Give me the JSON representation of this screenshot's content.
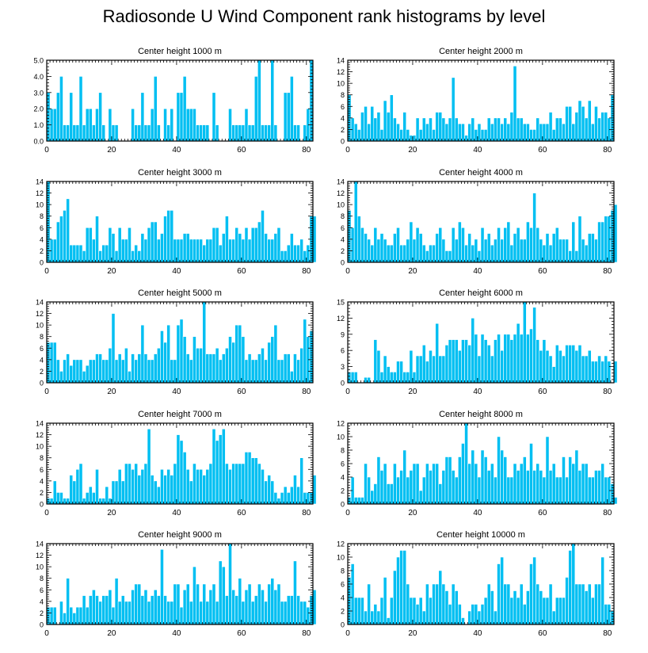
{
  "title": "Radiosonde U Wind Component rank histograms by level",
  "colors": {
    "bar_fill": "#00bff2",
    "bar_edge": "#ffffff",
    "frame": "#000000"
  },
  "chart_data": [
    {
      "type": "bar",
      "title": "Center height 1000 m",
      "xlim": [
        0,
        82
      ],
      "ylim": [
        0,
        5
      ],
      "yticks": [
        0,
        1,
        2,
        3,
        4,
        5
      ],
      "ytick_labels": [
        "0.0",
        "1.0",
        "2.0",
        "3.0",
        "4.0",
        "5.0"
      ],
      "xticks": [
        0,
        20,
        40,
        60,
        80
      ],
      "values": [
        3,
        2,
        2,
        3,
        4,
        1,
        1,
        3,
        1,
        1,
        4,
        1,
        2,
        2,
        1,
        2,
        3,
        1,
        0,
        2,
        1,
        1,
        0,
        0,
        0,
        0,
        2,
        1,
        1,
        3,
        1,
        1,
        2,
        4,
        1,
        0,
        2,
        1,
        2,
        0,
        3,
        3,
        4,
        2,
        2,
        2,
        1,
        1,
        1,
        1,
        0,
        3,
        1,
        0,
        0,
        0,
        2,
        1,
        1,
        1,
        1,
        2,
        1,
        1,
        4,
        5,
        1,
        1,
        1,
        5,
        1,
        0,
        0,
        3,
        3,
        4,
        1,
        1,
        0,
        1,
        2,
        5
      ]
    },
    {
      "type": "bar",
      "title": "Center height 2000 m",
      "xlim": [
        0,
        82
      ],
      "ylim": [
        0,
        14
      ],
      "yticks": [
        0,
        2,
        4,
        6,
        8,
        10,
        12,
        14
      ],
      "ytick_labels": [
        "0",
        "2",
        "4",
        "6",
        "8",
        "10",
        "12",
        "14"
      ],
      "xticks": [
        0,
        20,
        40,
        60,
        80
      ],
      "values": [
        8,
        4,
        3,
        2,
        5,
        6,
        3,
        6,
        4,
        5,
        2,
        7,
        5,
        8,
        4,
        3,
        2,
        5,
        2,
        1,
        1,
        4,
        2,
        4,
        3,
        4,
        2,
        5,
        5,
        4,
        3,
        4,
        11,
        4,
        3,
        3,
        1,
        3,
        4,
        2,
        3,
        2,
        2,
        4,
        3,
        4,
        4,
        3,
        4,
        3,
        5,
        13,
        4,
        4,
        3,
        3,
        2,
        2,
        4,
        3,
        3,
        3,
        5,
        2,
        4,
        4,
        3,
        6,
        6,
        3,
        5,
        7,
        6,
        4,
        7,
        3,
        6,
        4,
        5,
        5,
        4,
        8
      ]
    },
    {
      "type": "bar",
      "title": "Center height 3000 m",
      "xlim": [
        0,
        82
      ],
      "ylim": [
        0,
        14
      ],
      "yticks": [
        0,
        2,
        4,
        6,
        8,
        10,
        12,
        14
      ],
      "ytick_labels": [
        "0",
        "2",
        "4",
        "6",
        "8",
        "10",
        "12",
        "14"
      ],
      "xticks": [
        0,
        20,
        40,
        60,
        80
      ],
      "values": [
        14,
        4,
        4,
        7,
        8,
        9,
        11,
        3,
        3,
        3,
        3,
        2,
        6,
        6,
        4,
        8,
        2,
        3,
        3,
        6,
        5,
        2,
        6,
        4,
        4,
        6,
        2,
        3,
        2,
        5,
        4,
        6,
        7,
        7,
        4,
        5,
        8,
        9,
        9,
        4,
        4,
        4,
        5,
        5,
        4,
        4,
        4,
        4,
        3,
        4,
        4,
        6,
        6,
        3,
        5,
        8,
        4,
        4,
        6,
        5,
        4,
        6,
        4,
        6,
        6,
        7,
        9,
        5,
        4,
        4,
        5,
        6,
        2,
        2,
        3,
        5,
        3,
        3,
        4,
        2,
        3,
        8,
        8
      ]
    },
    {
      "type": "bar",
      "title": "Center height 4000 m",
      "xlim": [
        0,
        82
      ],
      "ylim": [
        0,
        14
      ],
      "yticks": [
        0,
        2,
        4,
        6,
        8,
        10,
        12,
        14
      ],
      "ytick_labels": [
        "0",
        "2",
        "4",
        "6",
        "8",
        "10",
        "12",
        "14"
      ],
      "xticks": [
        0,
        20,
        40,
        60,
        80
      ],
      "values": [
        9,
        6,
        14,
        8,
        6,
        5,
        4,
        3,
        6,
        4,
        5,
        4,
        3,
        3,
        5,
        6,
        3,
        3,
        4,
        7,
        4,
        6,
        5,
        3,
        2,
        3,
        3,
        5,
        6,
        4,
        2,
        2,
        6,
        4,
        7,
        6,
        3,
        5,
        3,
        4,
        2,
        6,
        4,
        5,
        3,
        4,
        6,
        4,
        6,
        7,
        3,
        5,
        6,
        4,
        4,
        7,
        6,
        12,
        6,
        4,
        3,
        5,
        3,
        5,
        6,
        4,
        4,
        4,
        2,
        7,
        2,
        8,
        4,
        3,
        5,
        5,
        4,
        7,
        7,
        8,
        8,
        9,
        10
      ]
    },
    {
      "type": "bar",
      "title": "Center height 5000 m",
      "xlim": [
        0,
        82
      ],
      "ylim": [
        0,
        14
      ],
      "yticks": [
        0,
        2,
        4,
        6,
        8,
        10,
        12,
        14
      ],
      "ytick_labels": [
        "0",
        "2",
        "4",
        "6",
        "8",
        "10",
        "12",
        "14"
      ],
      "xticks": [
        0,
        20,
        40,
        60,
        80
      ],
      "values": [
        7,
        7,
        7,
        4,
        2,
        4,
        5,
        3,
        4,
        4,
        4,
        2,
        3,
        4,
        4,
        5,
        5,
        4,
        4,
        6,
        12,
        4,
        5,
        4,
        6,
        2,
        5,
        4,
        5,
        10,
        5,
        4,
        4,
        5,
        6,
        9,
        7,
        10,
        4,
        4,
        10,
        11,
        8,
        5,
        4,
        8,
        6,
        6,
        14,
        5,
        5,
        5,
        6,
        4,
        5,
        6,
        8,
        7,
        10,
        10,
        8,
        4,
        5,
        4,
        4,
        5,
        6,
        4,
        7,
        8,
        10,
        4,
        4,
        5,
        5,
        2,
        5,
        4,
        6,
        11,
        8,
        9
      ]
    },
    {
      "type": "bar",
      "title": "Center height 6000 m",
      "xlim": [
        0,
        82
      ],
      "ylim": [
        0,
        15
      ],
      "yticks": [
        0,
        3,
        6,
        9,
        12,
        15
      ],
      "ytick_labels": [
        "0",
        "3",
        "6",
        "9",
        "12",
        "15"
      ],
      "xticks": [
        0,
        20,
        40,
        60,
        80
      ],
      "values": [
        2,
        2,
        2,
        0,
        0,
        1,
        1,
        0,
        8,
        6,
        2,
        5,
        3,
        2,
        2,
        4,
        4,
        2,
        2,
        6,
        2,
        5,
        5,
        7,
        4,
        6,
        5,
        11,
        5,
        5,
        7,
        8,
        8,
        8,
        6,
        8,
        8,
        7,
        12,
        9,
        5,
        9,
        8,
        7,
        5,
        8,
        9,
        6,
        9,
        9,
        8,
        9,
        11,
        9,
        15,
        9,
        10,
        14,
        8,
        6,
        8,
        6,
        5,
        3,
        7,
        6,
        5,
        7,
        7,
        7,
        6,
        7,
        5,
        5,
        6,
        4,
        4,
        5,
        4,
        5,
        4,
        0,
        4
      ]
    },
    {
      "type": "bar",
      "title": "Center height 7000 m",
      "xlim": [
        0,
        82
      ],
      "ylim": [
        0,
        14
      ],
      "yticks": [
        0,
        2,
        4,
        6,
        8,
        10,
        12,
        14
      ],
      "ytick_labels": [
        "0",
        "2",
        "4",
        "6",
        "8",
        "10",
        "12",
        "14"
      ],
      "xticks": [
        0,
        20,
        40,
        60,
        80
      ],
      "values": [
        1,
        1,
        4,
        2,
        2,
        1,
        1,
        5,
        4,
        6,
        7,
        1,
        2,
        3,
        2,
        6,
        1,
        1,
        3,
        1,
        4,
        4,
        6,
        4,
        7,
        7,
        6,
        7,
        5,
        6,
        7,
        13,
        5,
        4,
        3,
        6,
        5,
        6,
        5,
        7,
        12,
        11,
        9,
        6,
        4,
        7,
        6,
        6,
        5,
        6,
        7,
        13,
        11,
        12,
        13,
        7,
        6,
        7,
        7,
        7,
        7,
        9,
        9,
        8,
        8,
        7,
        6,
        4,
        5,
        4,
        2,
        1,
        2,
        3,
        2,
        3,
        5,
        3,
        8,
        2,
        2,
        2,
        5
      ]
    },
    {
      "type": "bar",
      "title": "Center height 8000 m",
      "xlim": [
        0,
        82
      ],
      "ylim": [
        0,
        12
      ],
      "yticks": [
        0,
        2,
        4,
        6,
        8,
        10,
        12
      ],
      "ytick_labels": [
        "0",
        "2",
        "4",
        "6",
        "8",
        "10",
        "12"
      ],
      "xticks": [
        0,
        20,
        40,
        60,
        80
      ],
      "values": [
        1,
        4,
        1,
        1,
        1,
        6,
        4,
        2,
        3,
        7,
        5,
        6,
        3,
        3,
        6,
        4,
        5,
        8,
        4,
        5,
        6,
        6,
        2,
        4,
        6,
        5,
        6,
        6,
        3,
        5,
        7,
        7,
        5,
        4,
        7,
        9,
        12,
        6,
        8,
        6,
        4,
        8,
        7,
        5,
        6,
        4,
        10,
        8,
        7,
        4,
        4,
        6,
        5,
        6,
        7,
        5,
        9,
        5,
        6,
        5,
        4,
        10,
        5,
        6,
        4,
        4,
        7,
        4,
        7,
        6,
        8,
        5,
        6,
        6,
        4,
        4,
        5,
        5,
        6,
        4,
        4,
        3,
        1
      ]
    },
    {
      "type": "bar",
      "title": "Center height 9000 m",
      "xlim": [
        0,
        82
      ],
      "ylim": [
        0,
        14
      ],
      "yticks": [
        0,
        2,
        4,
        6,
        8,
        10,
        12,
        14
      ],
      "ytick_labels": [
        "0",
        "2",
        "4",
        "6",
        "8",
        "10",
        "12",
        "14"
      ],
      "xticks": [
        0,
        20,
        40,
        60,
        80
      ],
      "values": [
        3,
        3,
        3,
        0,
        4,
        2,
        8,
        3,
        2,
        3,
        3,
        5,
        3,
        5,
        6,
        5,
        4,
        5,
        5,
        6,
        3,
        8,
        4,
        5,
        4,
        4,
        6,
        7,
        7,
        5,
        6,
        4,
        5,
        6,
        5,
        13,
        5,
        4,
        4,
        7,
        7,
        3,
        6,
        7,
        4,
        10,
        7,
        4,
        7,
        4,
        6,
        7,
        4,
        11,
        10,
        5,
        14,
        6,
        5,
        8,
        4,
        6,
        7,
        4,
        5,
        7,
        6,
        4,
        7,
        8,
        6,
        7,
        4,
        4,
        5,
        5,
        11,
        5,
        4,
        4,
        3,
        5,
        6
      ]
    },
    {
      "type": "bar",
      "title": "Center height 10000 m",
      "xlim": [
        0,
        82
      ],
      "ylim": [
        0,
        12
      ],
      "yticks": [
        0,
        2,
        4,
        6,
        8,
        10,
        12
      ],
      "ytick_labels": [
        "0",
        "2",
        "4",
        "6",
        "8",
        "10",
        "12"
      ],
      "xticks": [
        0,
        20,
        40,
        60,
        80
      ],
      "values": [
        7,
        9,
        4,
        4,
        4,
        2,
        6,
        2,
        3,
        2,
        4,
        7,
        1,
        4,
        8,
        10,
        11,
        11,
        6,
        4,
        4,
        3,
        4,
        2,
        6,
        4,
        6,
        6,
        8,
        6,
        5,
        3,
        6,
        5,
        3,
        1,
        0,
        2,
        3,
        3,
        2,
        3,
        4,
        6,
        5,
        2,
        9,
        10,
        6,
        6,
        4,
        5,
        4,
        6,
        3,
        5,
        9,
        10,
        6,
        5,
        4,
        4,
        6,
        2,
        4,
        4,
        4,
        7,
        11,
        12,
        6,
        6,
        6,
        5,
        6,
        4,
        6,
        6,
        10,
        3,
        3,
        2
      ]
    }
  ],
  "axis_labels": {
    "x_tick_labels": [
      "0",
      "20",
      "40",
      "60",
      "80"
    ]
  }
}
